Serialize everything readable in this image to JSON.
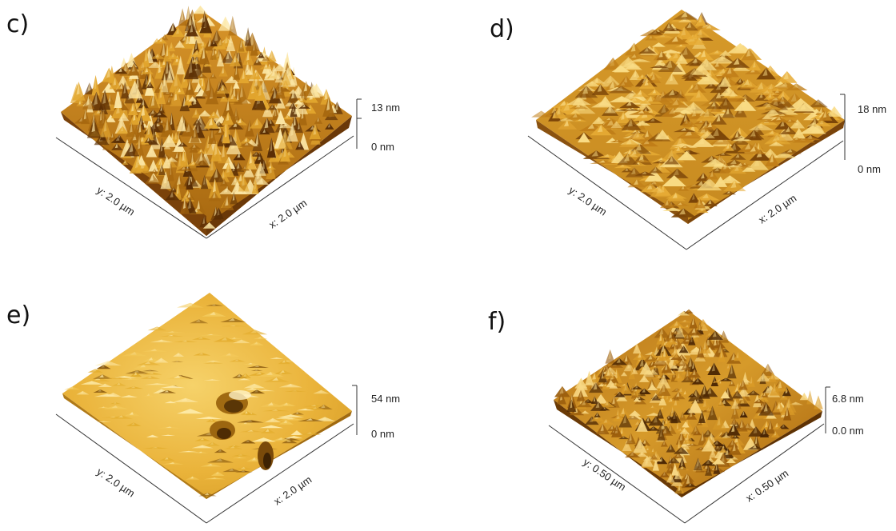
{
  "panels": [
    {
      "label": "c)",
      "z_max": "13 nm",
      "z_min": "0 nm",
      "x_axis": "x: 2.0 µm",
      "y_axis": "y: 2.0 µm",
      "surface": {
        "roughness": "high",
        "peaks": "sharp",
        "colors": [
          "#5a2e05",
          "#a6670f",
          "#e2a62e",
          "#fce7a6"
        ]
      }
    },
    {
      "label": "d)",
      "z_max": "18 nm",
      "z_min": "0 nm",
      "x_axis": "x: 2.0 µm",
      "y_axis": "y: 2.0 µm",
      "surface": {
        "roughness": "medium",
        "peaks": "rounded",
        "colors": [
          "#7a4408",
          "#bf7d18",
          "#e6ab35",
          "#f9dc86"
        ]
      }
    },
    {
      "label": "e)",
      "z_max": "54 nm",
      "z_min": "0 nm",
      "x_axis": "x: 2.0 µm",
      "y_axis": "y: 2.0 µm",
      "surface": {
        "roughness": "low",
        "peaks": "smooth with pits",
        "colors": [
          "#8a5a10",
          "#e3ad2e",
          "#f3c95a",
          "#fde9a6"
        ]
      }
    },
    {
      "label": "f)",
      "z_max": "6.8 nm",
      "z_min": "0.0 nm",
      "x_axis": "x: 0.50 µm",
      "y_axis": "y: 0.50 µm",
      "surface": {
        "roughness": "high",
        "peaks": "ridged",
        "colors": [
          "#4a2604",
          "#9a5c0c",
          "#d99a27",
          "#f8d885"
        ]
      }
    }
  ]
}
